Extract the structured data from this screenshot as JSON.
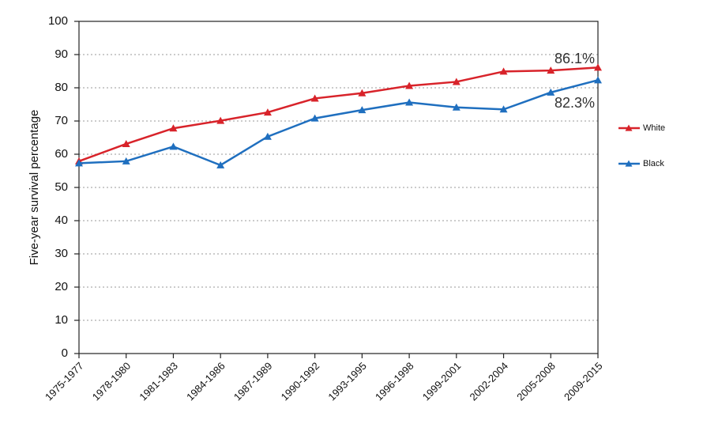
{
  "chart_data": {
    "type": "line",
    "y_label": "Five-year survival percentage",
    "categories": [
      "1975-1977",
      "1978-1980",
      "1981-1983",
      "1984-1986",
      "1987-1989",
      "1990-1992",
      "1993-1995",
      "1996-1998",
      "1999-2001",
      "2002-2004",
      "2005-2008",
      "2009-2015"
    ],
    "series": [
      {
        "name": "White",
        "color": "#d8232a",
        "values": [
          57.9,
          63.1,
          67.8,
          70.1,
          72.6,
          76.8,
          78.4,
          80.6,
          81.8,
          84.9,
          85.2,
          86.1
        ],
        "value_labels": [
          null,
          null,
          null,
          null,
          null,
          null,
          null,
          null,
          null,
          null,
          null,
          "86.1%"
        ]
      },
      {
        "name": "Black",
        "color": "#1f6fbf",
        "values": [
          57.3,
          57.9,
          62.3,
          56.7,
          65.3,
          70.8,
          73.3,
          75.6,
          74.1,
          73.5,
          78.6,
          82.3
        ],
        "value_labels": [
          null,
          null,
          null,
          null,
          null,
          null,
          null,
          null,
          null,
          null,
          null,
          "82.3%"
        ]
      }
    ],
    "ylim": [
      0,
      100
    ],
    "yticks": [
      0,
      10,
      20,
      30,
      40,
      50,
      60,
      70,
      80,
      90,
      100
    ],
    "grid": true,
    "legend": "right"
  }
}
